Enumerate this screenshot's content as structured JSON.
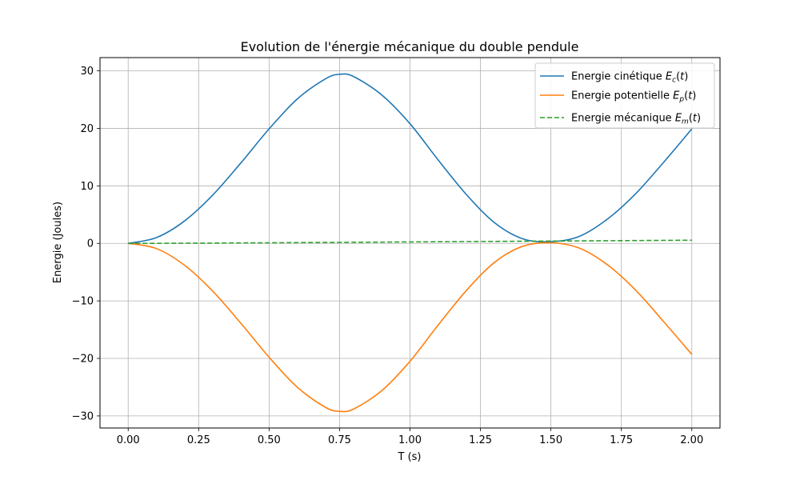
{
  "chart_data": {
    "type": "line",
    "title": "Evolution de l'énergie mécanique du double pendule",
    "xlabel": "T (s)",
    "ylabel": "Energie (Joules)",
    "xlim": [
      -0.1,
      2.1
    ],
    "ylim": [
      -32.1,
      32.3
    ],
    "grid": true,
    "legend_position": "top-right",
    "x_ticks": [
      0.0,
      0.25,
      0.5,
      0.75,
      1.0,
      1.25,
      1.5,
      1.75,
      2.0
    ],
    "x_tick_labels": [
      "0.00",
      "0.25",
      "0.50",
      "0.75",
      "1.00",
      "1.25",
      "1.50",
      "1.75",
      "2.00"
    ],
    "y_ticks": [
      -30,
      -20,
      -10,
      0,
      10,
      20,
      30
    ],
    "y_tick_labels": [
      "−30",
      "−20",
      "−10",
      "0",
      "10",
      "20",
      "30"
    ],
    "x": [
      0.0,
      0.1,
      0.2,
      0.3,
      0.4,
      0.5,
      0.6,
      0.7,
      0.75,
      0.8,
      0.9,
      1.0,
      1.1,
      1.2,
      1.3,
      1.4,
      1.5,
      1.6,
      1.7,
      1.8,
      1.9,
      2.0
    ],
    "series": [
      {
        "name": "Energie cinétique",
        "subscript": "c",
        "color": "#1f77b4",
        "style": "solid",
        "values": [
          0.0,
          1.0,
          3.9,
          8.4,
          14.0,
          19.9,
          25.1,
          28.6,
          29.4,
          29.0,
          25.8,
          20.8,
          14.5,
          8.5,
          3.6,
          0.8,
          0.3,
          1.2,
          4.2,
          8.6,
          14.1,
          19.9
        ]
      },
      {
        "name": "Energie potentielle",
        "subscript": "p",
        "color": "#ff7f0e",
        "style": "solid",
        "values": [
          0.0,
          -0.9,
          -3.8,
          -8.3,
          -13.9,
          -19.8,
          -25.0,
          -28.5,
          -29.2,
          -28.8,
          -25.6,
          -20.5,
          -14.2,
          -8.2,
          -3.3,
          -0.5,
          0.1,
          -0.8,
          -3.7,
          -8.1,
          -13.6,
          -19.3
        ]
      },
      {
        "name": "Energie mécanique",
        "subscript": "m",
        "color": "#2ca02c",
        "style": "dashed",
        "values": [
          0.0,
          0.01,
          0.03,
          0.05,
          0.08,
          0.1,
          0.13,
          0.16,
          0.17,
          0.19,
          0.22,
          0.25,
          0.28,
          0.31,
          0.34,
          0.37,
          0.4,
          0.43,
          0.46,
          0.49,
          0.52,
          0.55
        ]
      }
    ]
  }
}
